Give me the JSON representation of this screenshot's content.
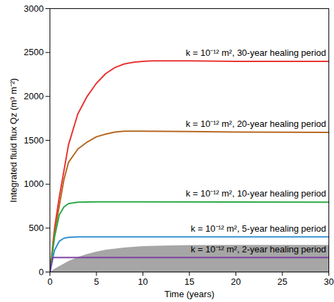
{
  "chart_data": {
    "type": "line",
    "x_label": "Time (years)",
    "y_label": "Integrated fluid flux Qz (m³ m⁻²)",
    "xlim": [
      0,
      30
    ],
    "ylim": [
      0,
      3000
    ],
    "xticks": [
      0,
      5,
      10,
      15,
      20,
      25,
      30
    ],
    "yticks": [
      0,
      500,
      1000,
      1500,
      2000,
      2500,
      3000
    ],
    "grid": false,
    "series": [
      {
        "type": "area",
        "color": "#a6a6a6",
        "x": [
          0,
          1,
          2,
          3,
          4,
          5,
          6,
          8,
          10,
          12,
          15,
          20,
          25,
          30
        ],
        "values": [
          0,
          60,
          120,
          165,
          200,
          228,
          250,
          275,
          290,
          297,
          302,
          305,
          305,
          305
        ]
      },
      {
        "name": "k = 10⁻¹² m², 30-year healing period",
        "type": "line",
        "color": "#e8312f",
        "x": [
          0,
          0.5,
          1,
          1.5,
          2,
          3,
          4,
          5,
          6,
          7,
          8,
          9,
          10,
          11,
          12,
          15,
          20,
          25,
          30
        ],
        "values": [
          0,
          500,
          850,
          1150,
          1450,
          1800,
          2000,
          2150,
          2260,
          2330,
          2370,
          2390,
          2400,
          2405,
          2405,
          2405,
          2400,
          2400,
          2400
        ]
      },
      {
        "name": "k = 10⁻¹² m², 20-year healing period",
        "type": "line",
        "color": "#b5651d",
        "x": [
          0,
          0.5,
          1,
          1.5,
          2,
          3,
          4,
          5,
          6,
          7,
          8,
          10,
          15,
          20,
          25,
          30
        ],
        "values": [
          0,
          450,
          750,
          1050,
          1250,
          1400,
          1480,
          1540,
          1570,
          1595,
          1605,
          1605,
          1600,
          1595,
          1592,
          1590
        ]
      },
      {
        "name": "k = 10⁻¹² m², 10-year healing period",
        "type": "line",
        "color": "#27a844",
        "x": [
          0,
          0.5,
          1,
          1.5,
          2,
          3,
          5,
          10,
          20,
          30
        ],
        "values": [
          0,
          400,
          650,
          740,
          780,
          795,
          800,
          800,
          798,
          795
        ]
      },
      {
        "name": "k = 10⁻¹² m², 5-year healing period",
        "type": "line",
        "color": "#2f8fd1",
        "x": [
          0,
          0.5,
          1,
          1.5,
          2,
          3,
          5,
          10,
          20,
          30
        ],
        "values": [
          0,
          250,
          350,
          385,
          395,
          400,
          400,
          400,
          400,
          400
        ]
      },
      {
        "name": "k = 10⁻¹² m², 2-year healing period",
        "type": "line",
        "color": "#7b3fa0",
        "x": [
          0,
          0.3,
          5,
          10,
          20,
          30
        ],
        "values": [
          0,
          165,
          165,
          165,
          165,
          165
        ]
      }
    ]
  }
}
